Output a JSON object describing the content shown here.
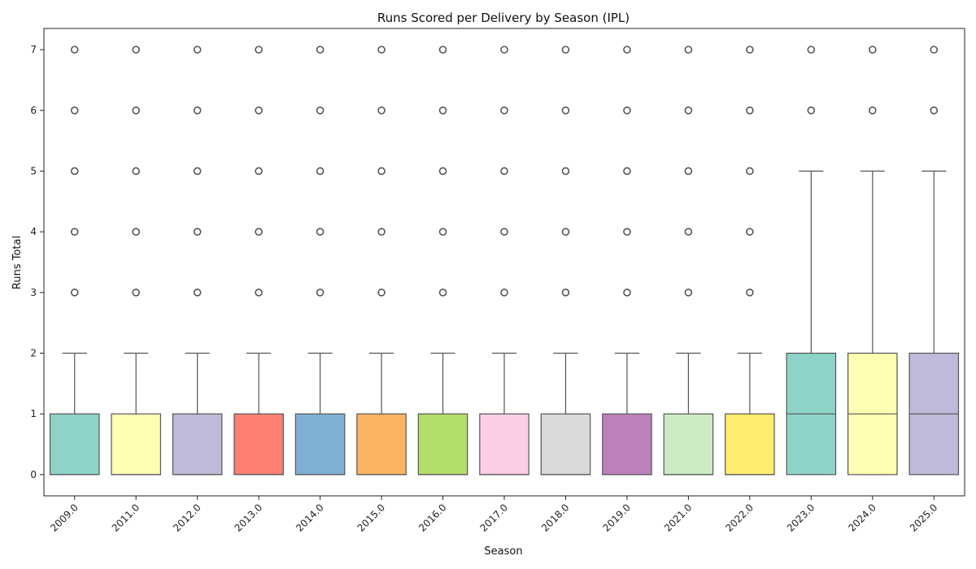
{
  "chart_data": {
    "type": "box",
    "title": "Runs Scored per Delivery by Season (IPL)",
    "xlabel": "Season",
    "ylabel": "Runs Total",
    "ylim": [
      -0.35,
      7.35
    ],
    "yticks": [
      0,
      1,
      2,
      3,
      4,
      5,
      6,
      7
    ],
    "grid": false,
    "categories": [
      "2009.0",
      "2011.0",
      "2012.0",
      "2013.0",
      "2014.0",
      "2015.0",
      "2016.0",
      "2017.0",
      "2018.0",
      "2019.0",
      "2021.0",
      "2022.0",
      "2023.0",
      "2024.0",
      "2025.0"
    ],
    "boxes": [
      {
        "season": "2009.0",
        "min": 0,
        "q1": 0,
        "median": 0,
        "q3": 1,
        "max": 2,
        "outliers": [
          3,
          4,
          5,
          6,
          7
        ],
        "color": "#8dd3c7"
      },
      {
        "season": "2011.0",
        "min": 0,
        "q1": 0,
        "median": 0,
        "q3": 1,
        "max": 2,
        "outliers": [
          3,
          4,
          5,
          6,
          7
        ],
        "color": "#ffffb3"
      },
      {
        "season": "2012.0",
        "min": 0,
        "q1": 0,
        "median": 0,
        "q3": 1,
        "max": 2,
        "outliers": [
          3,
          4,
          5,
          6,
          7
        ],
        "color": "#bebada"
      },
      {
        "season": "2013.0",
        "min": 0,
        "q1": 0,
        "median": 0,
        "q3": 1,
        "max": 2,
        "outliers": [
          3,
          4,
          5,
          6,
          7
        ],
        "color": "#fb8072"
      },
      {
        "season": "2014.0",
        "min": 0,
        "q1": 0,
        "median": 0,
        "q3": 1,
        "max": 2,
        "outliers": [
          3,
          4,
          5,
          6,
          7
        ],
        "color": "#80b1d3"
      },
      {
        "season": "2015.0",
        "min": 0,
        "q1": 0,
        "median": 0,
        "q3": 1,
        "max": 2,
        "outliers": [
          3,
          4,
          5,
          6,
          7
        ],
        "color": "#fdb462"
      },
      {
        "season": "2016.0",
        "min": 0,
        "q1": 0,
        "median": 0,
        "q3": 1,
        "max": 2,
        "outliers": [
          3,
          4,
          5,
          6,
          7
        ],
        "color": "#b3de69"
      },
      {
        "season": "2017.0",
        "min": 0,
        "q1": 0,
        "median": 0,
        "q3": 1,
        "max": 2,
        "outliers": [
          3,
          4,
          5,
          6,
          7
        ],
        "color": "#fccde5"
      },
      {
        "season": "2018.0",
        "min": 0,
        "q1": 0,
        "median": 0,
        "q3": 1,
        "max": 2,
        "outliers": [
          3,
          4,
          5,
          6,
          7
        ],
        "color": "#d9d9d9"
      },
      {
        "season": "2019.0",
        "min": 0,
        "q1": 0,
        "median": 0,
        "q3": 1,
        "max": 2,
        "outliers": [
          3,
          4,
          5,
          6,
          7
        ],
        "color": "#bc80bd"
      },
      {
        "season": "2021.0",
        "min": 0,
        "q1": 0,
        "median": 0,
        "q3": 1,
        "max": 2,
        "outliers": [
          3,
          4,
          5,
          6,
          7
        ],
        "color": "#ccebc5"
      },
      {
        "season": "2022.0",
        "min": 0,
        "q1": 0,
        "median": 0,
        "q3": 1,
        "max": 2,
        "outliers": [
          3,
          4,
          5,
          6,
          7
        ],
        "color": "#ffed6f"
      },
      {
        "season": "2023.0",
        "min": 0,
        "q1": 0,
        "median": 1,
        "q3": 2,
        "max": 5,
        "outliers": [
          6,
          7
        ],
        "color": "#8dd3c7"
      },
      {
        "season": "2024.0",
        "min": 0,
        "q1": 0,
        "median": 1,
        "q3": 2,
        "max": 5,
        "outliers": [
          6,
          7
        ],
        "color": "#ffffb3"
      },
      {
        "season": "2025.0",
        "min": 0,
        "q1": 0,
        "median": 1,
        "q3": 2,
        "max": 5,
        "outliers": [
          6,
          7
        ],
        "color": "#bebada"
      }
    ]
  }
}
